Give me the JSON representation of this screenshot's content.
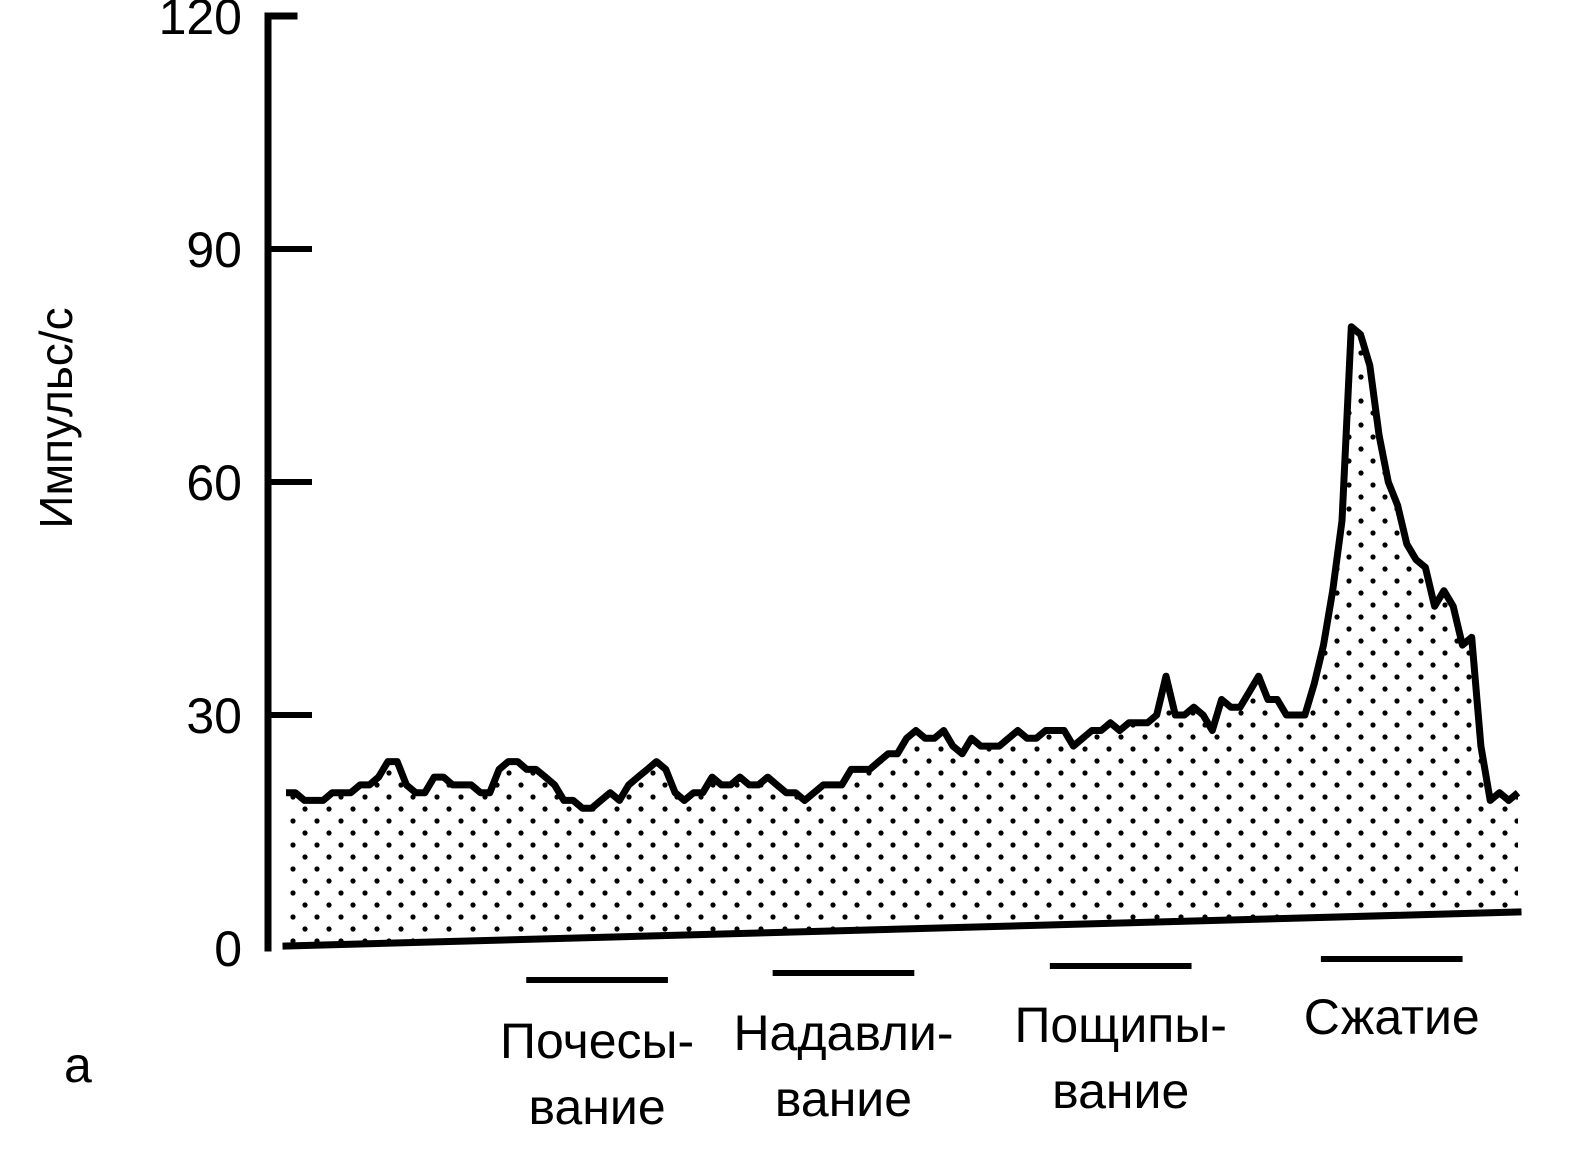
{
  "chart_data": {
    "type": "area",
    "title": "",
    "xlabel": "",
    "ylabel": "Импульс/с",
    "ylim": [
      0,
      120
    ],
    "yticks": [
      0,
      30,
      60,
      90,
      120
    ],
    "grid": false,
    "panel_label": "а",
    "fill_pattern": "stippled",
    "line_color": "#000000",
    "series": [
      {
        "values": [
          20,
          20,
          19,
          19,
          19,
          20,
          20,
          20,
          21,
          21,
          22,
          24,
          24,
          21,
          20,
          20,
          22,
          22,
          21,
          21,
          21,
          20,
          20,
          23,
          24,
          24,
          23,
          23,
          22,
          21,
          19,
          19,
          18,
          18,
          19,
          20,
          19,
          21,
          22,
          23,
          24,
          23,
          20,
          19,
          20,
          20,
          22,
          21,
          21,
          22,
          21,
          21,
          22,
          21,
          20,
          20,
          19,
          20,
          21,
          21,
          21,
          23,
          23,
          23,
          24,
          25,
          25,
          27,
          28,
          27,
          27,
          28,
          26,
          25,
          27,
          26,
          26,
          26,
          27,
          28,
          27,
          27,
          28,
          28,
          28,
          26,
          27,
          28,
          28,
          29,
          28,
          29,
          29,
          29,
          30,
          35,
          30,
          30,
          31,
          30,
          28,
          32,
          31,
          31,
          33,
          35,
          32,
          32,
          30,
          30,
          30,
          34,
          39,
          46,
          55,
          80,
          79,
          75,
          66,
          60,
          57,
          52,
          50,
          49,
          44,
          46,
          44,
          39,
          40,
          26,
          19,
          20,
          19,
          20
        ]
      }
    ],
    "stimuli": [
      {
        "label_line1": "Почесы-",
        "label_line2": "вание",
        "start": 0.195,
        "end": 0.31
      },
      {
        "label_line1": "Надавли-",
        "label_line2": "вание",
        "start": 0.395,
        "end": 0.51
      },
      {
        "label_line1": "Пощипы-",
        "label_line2": "вание",
        "start": 0.62,
        "end": 0.735
      },
      {
        "label_line1": "Сжатие",
        "label_line2": "",
        "start": 0.84,
        "end": 0.955
      }
    ]
  }
}
